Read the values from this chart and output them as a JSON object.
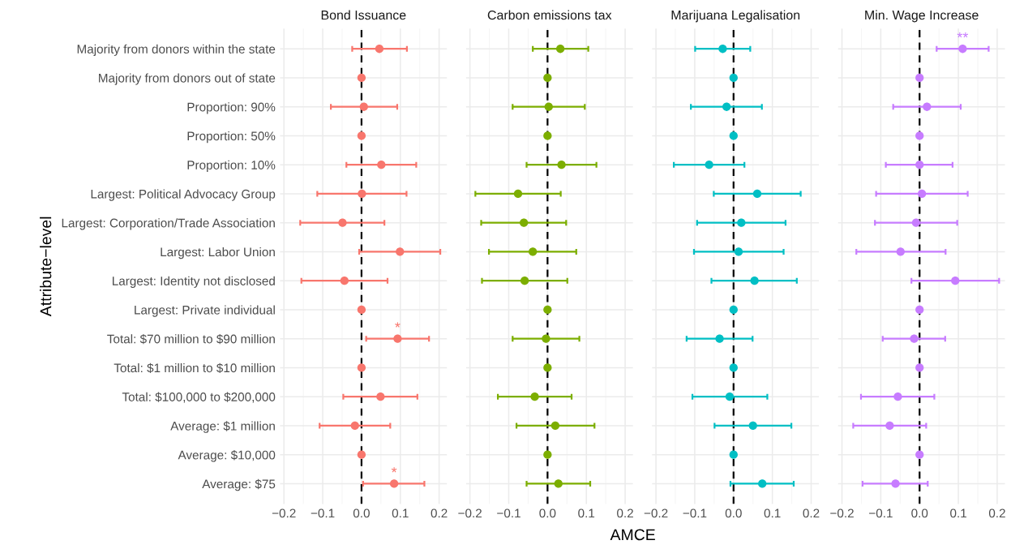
{
  "chart_data": [
    {
      "type": "scatter",
      "orientation": "horizontal",
      "title": "Bond Issuance",
      "ylabel": "Attribute−level",
      "color": "#f8766d",
      "marker": "circle",
      "grid": true,
      "categories": [
        "Majority from donors within the state",
        "Majority from donors out of state",
        "Proportion: 90%",
        "Proportion: 50%",
        "Proportion: 10%",
        "Largest: Political Advocacy Group",
        "Largest: Corporation/Trade Association",
        "Largest: Labor Union",
        "Largest: Identity not disclosed",
        "Largest: Private individual",
        "Total: $70 million to $90 million",
        "Total: $1 million to $10 million",
        "Total: $100,000 to $200,000",
        "Average: $1 million",
        "Average: $10,000",
        "Average: $75"
      ],
      "values": [
        0.046,
        0,
        0.006,
        0,
        0.051,
        0.001,
        -0.049,
        0.099,
        -0.044,
        0,
        0.093,
        0,
        0.049,
        -0.017,
        0,
        0.084
      ],
      "errors": [
        [
          -0.024,
          0.117
        ],
        null,
        [
          -0.079,
          0.092
        ],
        null,
        [
          -0.039,
          0.141
        ],
        [
          -0.114,
          0.116
        ],
        [
          -0.158,
          0.059
        ],
        [
          -0.006,
          0.203
        ],
        [
          -0.155,
          0.067
        ],
        null,
        [
          0.012,
          0.174
        ],
        null,
        [
          -0.047,
          0.144
        ],
        [
          -0.108,
          0.074
        ],
        null,
        [
          0.004,
          0.162
        ]
      ],
      "annotations": [
        {
          "text": "*",
          "x": 0.093,
          "y": "Total: $70 million to $90 million"
        },
        {
          "text": "*",
          "x": 0.084,
          "y": "Average: $75"
        }
      ],
      "ref_lines": [
        {
          "axis": "x",
          "value": 0,
          "color": "#000000",
          "line_style": "dashed"
        }
      ],
      "xlim": [
        -0.21,
        0.22
      ],
      "xticks": [
        {
          "value": -0.2,
          "label": "−0.2"
        },
        {
          "value": -0.1,
          "label": "−0.1"
        },
        {
          "value": 0,
          "label": "0.0"
        },
        {
          "value": 0.1,
          "label": "0.1"
        },
        {
          "value": 0.2,
          "label": "0.2"
        }
      ]
    },
    {
      "type": "scatter",
      "orientation": "horizontal",
      "title": "Carbon emissions tax",
      "xlabel": "AMCE",
      "color": "#7cae00",
      "marker": "circle",
      "grid": true,
      "tick_labels": "x",
      "categories": [
        "Majority from donors within the state",
        "Majority from donors out of state",
        "Proportion: 90%",
        "Proportion: 50%",
        "Proportion: 10%",
        "Largest: Political Advocacy Group",
        "Largest: Corporation/Trade Association",
        "Largest: Labor Union",
        "Largest: Identity not disclosed",
        "Largest: Private individual",
        "Total: $70 million to $90 million",
        "Total: $1 million to $10 million",
        "Total: $100,000 to $200,000",
        "Average: $1 million",
        "Average: $10,000",
        "Average: $75"
      ],
      "values": [
        0.033,
        0,
        0.003,
        0,
        0.036,
        -0.076,
        -0.061,
        -0.038,
        -0.059,
        0,
        -0.004,
        0,
        -0.033,
        0.02,
        0,
        0.028
      ],
      "errors": [
        [
          -0.038,
          0.105
        ],
        null,
        [
          -0.09,
          0.096
        ],
        null,
        [
          -0.054,
          0.126
        ],
        [
          -0.186,
          0.034
        ],
        [
          -0.171,
          0.048
        ],
        [
          -0.151,
          0.074
        ],
        [
          -0.169,
          0.051
        ],
        null,
        [
          -0.09,
          0.082
        ],
        null,
        [
          -0.128,
          0.062
        ],
        [
          -0.08,
          0.121
        ],
        null,
        [
          -0.054,
          0.11
        ]
      ],
      "ref_lines": [
        {
          "axis": "x",
          "value": 0,
          "color": "#000000",
          "line_style": "dashed"
        }
      ],
      "xlim": [
        -0.21,
        0.22
      ],
      "xticks": [
        {
          "value": -0.2,
          "label": "−0.2"
        },
        {
          "value": -0.1,
          "label": "−0.1"
        },
        {
          "value": 0,
          "label": "0.0"
        },
        {
          "value": 0.1,
          "label": "0.1"
        },
        {
          "value": 0.2,
          "label": "0.2"
        }
      ]
    },
    {
      "type": "scatter",
      "orientation": "horizontal",
      "title": "Marijuana Legalisation",
      "color": "#00bfc4",
      "marker": "circle",
      "grid": true,
      "tick_labels": "x",
      "categories": [
        "Majority from donors within the state",
        "Majority from donors out of state",
        "Proportion: 90%",
        "Proportion: 50%",
        "Proportion: 10%",
        "Largest: Political Advocacy Group",
        "Largest: Corporation/Trade Association",
        "Largest: Labor Union",
        "Largest: Identity not disclosed",
        "Largest: Private individual",
        "Total: $70 million to $90 million",
        "Total: $1 million to $10 million",
        "Total: $100,000 to $200,000",
        "Average: $1 million",
        "Average: $10,000",
        "Average: $75"
      ],
      "values": [
        -0.028,
        0,
        -0.018,
        0,
        -0.063,
        0.061,
        0.02,
        0.013,
        0.054,
        0,
        -0.036,
        0,
        -0.01,
        0.05,
        0,
        0.074
      ],
      "errors": [
        [
          -0.099,
          0.043
        ],
        null,
        [
          -0.11,
          0.073
        ],
        null,
        [
          -0.154,
          0.028
        ],
        [
          -0.051,
          0.173
        ],
        [
          -0.094,
          0.134
        ],
        [
          -0.102,
          0.129
        ],
        [
          -0.057,
          0.163
        ],
        null,
        [
          -0.121,
          0.049
        ],
        null,
        [
          -0.106,
          0.087
        ],
        [
          -0.049,
          0.149
        ],
        null,
        [
          -0.008,
          0.155
        ]
      ],
      "ref_lines": [
        {
          "axis": "x",
          "value": 0,
          "color": "#000000",
          "line_style": "dashed"
        }
      ],
      "xlim": [
        -0.21,
        0.22
      ],
      "xticks": [
        {
          "value": -0.2,
          "label": "−0.2"
        },
        {
          "value": -0.1,
          "label": "−0.1"
        },
        {
          "value": 0,
          "label": "0.0"
        },
        {
          "value": 0.1,
          "label": "0.1"
        },
        {
          "value": 0.2,
          "label": "0.2"
        }
      ]
    },
    {
      "type": "scatter",
      "orientation": "horizontal",
      "title": "Min. Wage Increase",
      "color": "#c77cff",
      "marker": "circle",
      "grid": true,
      "tick_labels": "x",
      "categories": [
        "Majority from donors within the state",
        "Majority from donors out of state",
        "Proportion: 90%",
        "Proportion: 50%",
        "Proportion: 10%",
        "Largest: Political Advocacy Group",
        "Largest: Corporation/Trade Association",
        "Largest: Labor Union",
        "Largest: Identity not disclosed",
        "Largest: Private individual",
        "Total: $70 million to $90 million",
        "Total: $1 million to $10 million",
        "Total: $100,000 to $200,000",
        "Average: $1 million",
        "Average: $10,000",
        "Average: $75"
      ],
      "values": [
        0.111,
        0,
        0.019,
        0,
        0.0,
        0.006,
        -0.009,
        -0.049,
        0.092,
        0,
        -0.014,
        0,
        -0.056,
        -0.077,
        0,
        -0.062
      ],
      "errors": [
        [
          0.044,
          0.178
        ],
        null,
        [
          -0.068,
          0.106
        ],
        null,
        [
          -0.087,
          0.085
        ],
        [
          -0.112,
          0.124
        ],
        [
          -0.115,
          0.097
        ],
        [
          -0.163,
          0.067
        ],
        [
          -0.021,
          0.205
        ],
        null,
        [
          -0.095,
          0.066
        ],
        null,
        [
          -0.151,
          0.038
        ],
        [
          -0.171,
          0.017
        ],
        null,
        [
          -0.147,
          0.021
        ]
      ],
      "annotations": [
        {
          "text": "**",
          "x": 0.111,
          "y": "Majority from donors within the state"
        }
      ],
      "ref_lines": [
        {
          "axis": "x",
          "value": 0,
          "color": "#000000",
          "line_style": "dashed"
        }
      ],
      "xlim": [
        -0.21,
        0.22
      ],
      "xticks": [
        {
          "value": -0.2,
          "label": "−0.2"
        },
        {
          "value": -0.1,
          "label": "−0.1"
        },
        {
          "value": 0,
          "label": "0.0"
        },
        {
          "value": 0.1,
          "label": "0.1"
        },
        {
          "value": 0.2,
          "label": "0.2"
        }
      ]
    }
  ]
}
